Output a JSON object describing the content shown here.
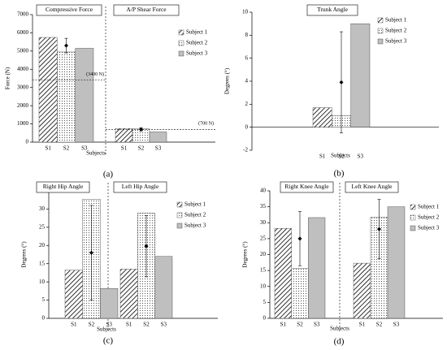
{
  "chart_data": [
    {
      "type": "bar",
      "panel_label": "(a)",
      "ylabel": "Force (N)",
      "xlabel": "Subjects",
      "ylim": [
        0,
        7000
      ],
      "yticks": [
        0,
        1000,
        2000,
        3000,
        4000,
        5000,
        6000,
        7000
      ],
      "legend": [
        "Subject 1",
        "Subject 2",
        "Subject 3"
      ],
      "groups": [
        {
          "title": "Compressive Force",
          "categories": [
            "S1",
            "S2",
            "S3"
          ],
          "values": [
            5750,
            4950,
            5150
          ],
          "mean": 5300,
          "error": 400,
          "threshold": 3400,
          "threshold_label": "(3400 N)"
        },
        {
          "title": "A/P Shear Force",
          "categories": [
            "S1",
            "S2",
            "S3"
          ],
          "values": [
            750,
            730,
            560
          ],
          "mean": 700,
          "error": 90,
          "threshold": 700,
          "threshold_label": "(700 N)"
        }
      ]
    },
    {
      "type": "bar",
      "panel_label": "(b)",
      "ylabel": "Degrees (°)",
      "xlabel": "Subjects",
      "ylim": [
        -2,
        10
      ],
      "yticks": [
        -2,
        0,
        2,
        4,
        6,
        8,
        10
      ],
      "legend": [
        "Subject 1",
        "Subject 2",
        "Subject 3"
      ],
      "groups": [
        {
          "title": "Trunk Angle",
          "categories": [
            "S1",
            "S2",
            "S3"
          ],
          "values": [
            1.7,
            1.0,
            9.0
          ],
          "mean": 3.9,
          "error": 4.4
        }
      ]
    },
    {
      "type": "bar",
      "panel_label": "(c)",
      "ylabel": "Degrees (°)",
      "xlabel": "Subjects",
      "ylim": [
        0,
        35
      ],
      "yticks": [
        0,
        5,
        10,
        15,
        20,
        25,
        30,
        35
      ],
      "legend": [
        "Subject 1",
        "Subject 2",
        "Subject 3"
      ],
      "groups": [
        {
          "title": "Right Hip Angle",
          "categories": [
            "S1",
            "S2",
            "S3"
          ],
          "values": [
            13.2,
            32.7,
            8.2
          ],
          "mean": 18,
          "error": 13
        },
        {
          "title": "Left Hip Angle",
          "categories": [
            "S1",
            "S2",
            "S3"
          ],
          "values": [
            13.5,
            28.9,
            17
          ],
          "mean": 19.8,
          "error": 8.4
        }
      ]
    },
    {
      "type": "bar",
      "panel_label": "(d)",
      "ylabel": "Degrees (°)",
      "xlabel": "Subjects",
      "ylim": [
        0,
        40
      ],
      "yticks": [
        0,
        5,
        10,
        15,
        20,
        25,
        30,
        35,
        40
      ],
      "legend": [
        "Subject 1",
        "Subject 2",
        "Subject 3"
      ],
      "groups": [
        {
          "title": "Right Knee Angle",
          "categories": [
            "S1",
            "S2",
            "S3"
          ],
          "values": [
            28.2,
            15.6,
            31.6
          ],
          "mean": 25,
          "error": 8.5
        },
        {
          "title": "Left Knee Angle",
          "categories": [
            "S1",
            "S2",
            "S3"
          ],
          "values": [
            17.3,
            31.8,
            35
          ],
          "mean": 28,
          "error": 9.3
        }
      ]
    }
  ]
}
